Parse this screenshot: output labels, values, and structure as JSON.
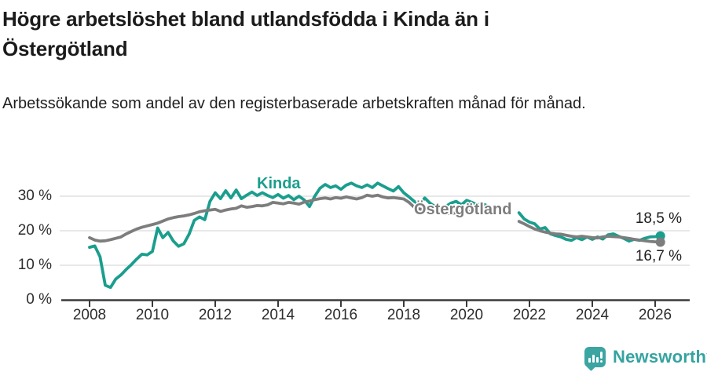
{
  "header": {
    "title": "Högre arbetslöshet bland utlandsfödda i Kinda än i Östergötland",
    "subtitle": "Arbetssökande som andel av den registerbaserade arbetskraften månad för månad."
  },
  "chart_data": {
    "type": "line",
    "title": "Högre arbetslöshet bland utlandsfödda i Kinda än i Östergötland",
    "subtitle": "Arbetssökande som andel av den registerbaserade arbetskraften månad för månad.",
    "xlabel": "",
    "ylabel": "",
    "x_unit": "year",
    "x_start": 2008,
    "x_step_months": 2,
    "xlim": [
      2007.1,
      2026.6
    ],
    "ylim": [
      0,
      35
    ],
    "grid": true,
    "legend_position": "inline-labels",
    "x_tick_years": [
      2008,
      2010,
      2012,
      2014,
      2016,
      2018,
      2020,
      2022,
      2024,
      2026
    ],
    "x_tick_labels": [
      "2008",
      "2010",
      "2012",
      "2014",
      "2016",
      "2018",
      "2020",
      "2022",
      "2024",
      "2026"
    ],
    "y_ticks": [
      0,
      10,
      20,
      30
    ],
    "y_tick_labels": [
      "0 %",
      "10 %",
      "20 %",
      "30 %"
    ],
    "series": [
      {
        "name": "Kinda",
        "color": "#1a9e8d",
        "end_label": "18,5 %",
        "values": [
          15.2,
          15.6,
          12.5,
          4.2,
          3.6,
          6.0,
          7.2,
          8.8,
          10.2,
          11.8,
          13.2,
          13.0,
          14.0,
          20.8,
          18.0,
          19.5,
          17.0,
          15.5,
          16.2,
          19.0,
          23.0,
          24.0,
          23.2,
          28.5,
          31.0,
          29.3,
          31.6,
          29.5,
          31.8,
          29.3,
          30.3,
          31.2,
          30.2,
          31.0,
          30.2,
          29.6,
          30.5,
          29.4,
          30.2,
          29.0,
          30.0,
          28.9,
          27.0,
          30.0,
          32.3,
          33.4,
          32.5,
          33.0,
          32.0,
          33.2,
          33.8,
          33.0,
          32.5,
          33.3,
          32.5,
          33.8,
          33.0,
          32.2,
          31.5,
          32.8,
          31.0,
          29.8,
          28.5,
          27.5,
          29.5,
          28.0,
          27.0,
          26.0,
          27.0,
          28.0,
          28.5,
          27.5,
          28.8,
          28.2,
          27.5,
          27.8,
          27.2,
          26.0,
          null,
          null,
          null,
          null,
          25.2,
          23.4,
          22.5,
          22.0,
          20.5,
          20.9,
          19.1,
          18.6,
          18.2,
          17.5,
          17.2,
          18.0,
          17.4,
          18.2,
          17.5,
          18.2,
          17.6,
          18.8,
          19.1,
          18.4,
          17.8,
          17.0,
          17.5,
          17.2,
          17.8,
          18.2,
          18.3,
          18.5
        ]
      },
      {
        "name": "Östergötland",
        "color": "#7d7d7d",
        "end_label": "16,7 %",
        "values": [
          18.0,
          17.3,
          17.0,
          17.1,
          17.4,
          17.8,
          18.2,
          19.1,
          19.8,
          20.5,
          21.0,
          21.4,
          21.8,
          22.2,
          22.8,
          23.4,
          23.8,
          24.1,
          24.3,
          24.6,
          25.0,
          25.5,
          25.8,
          26.0,
          26.2,
          25.6,
          26.0,
          26.3,
          26.5,
          27.2,
          26.8,
          27.0,
          27.3,
          27.2,
          27.5,
          28.2,
          28.0,
          27.8,
          28.2,
          28.0,
          27.7,
          28.3,
          28.6,
          29.0,
          29.3,
          29.5,
          29.2,
          29.6,
          29.4,
          29.8,
          29.5,
          29.2,
          29.6,
          30.3,
          30.0,
          30.3,
          29.8,
          29.5,
          29.6,
          29.4,
          29.2,
          28.2,
          26.8,
          26.3,
          26.0,
          25.8,
          25.5,
          25.3,
          25.2,
          25.0,
          25.2,
          25.4,
          25.5,
          25.6,
          25.4,
          25.6,
          25.3,
          25.1,
          null,
          null,
          null,
          null,
          22.7,
          22.0,
          21.2,
          20.5,
          20.0,
          19.6,
          19.3,
          19.1,
          19.0,
          18.7,
          18.4,
          18.2,
          18.4,
          18.2,
          18.0,
          17.9,
          18.2,
          18.4,
          18.3,
          18.2,
          18.0,
          17.8,
          17.5,
          17.3,
          17.1,
          16.9,
          16.8,
          16.7
        ]
      }
    ]
  },
  "colors": {
    "accent_teal": "#1a9e8d",
    "series_gray": "#7d7d7d",
    "logo_teal": "#3ba5a2",
    "brand_text_teal": "#35a3a0",
    "gridline": "#dbdbdb",
    "axis": "#3a3a3a"
  },
  "footer": {
    "brand": "Newsworthy"
  }
}
